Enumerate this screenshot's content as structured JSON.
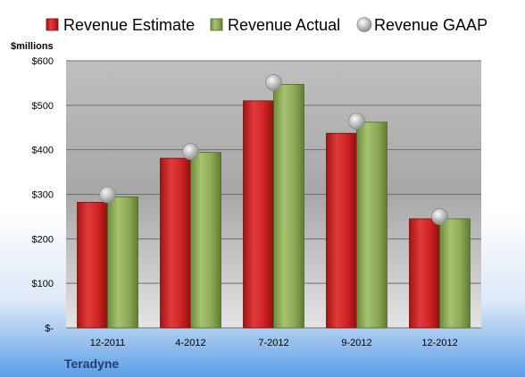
{
  "chart_data": {
    "type": "bar",
    "company": "Teradyne",
    "unit_label": "$millions",
    "categories": [
      "12-2011",
      "4-2012",
      "7-2012",
      "9-2012",
      "12-2012"
    ],
    "series": [
      {
        "name": "Revenue Estimate",
        "kind": "bar",
        "color": "#d42a2a",
        "values": [
          282,
          381,
          510,
          437,
          245
        ]
      },
      {
        "name": "Revenue Actual",
        "kind": "bar",
        "color": "#8fad58",
        "values": [
          294,
          394,
          547,
          462,
          245
        ]
      },
      {
        "name": "Revenue GAAP",
        "kind": "marker",
        "color": "#b8b8b8",
        "values": [
          299,
          396,
          551,
          464,
          250
        ]
      }
    ],
    "ylim": [
      0,
      600
    ],
    "yticks": [
      0,
      100,
      200,
      300,
      400,
      500,
      600
    ],
    "ytick_labels": [
      "$-",
      "$100",
      "$200",
      "$300",
      "$400",
      "$500",
      "$600"
    ],
    "grid": true,
    "legend_position": "top"
  }
}
